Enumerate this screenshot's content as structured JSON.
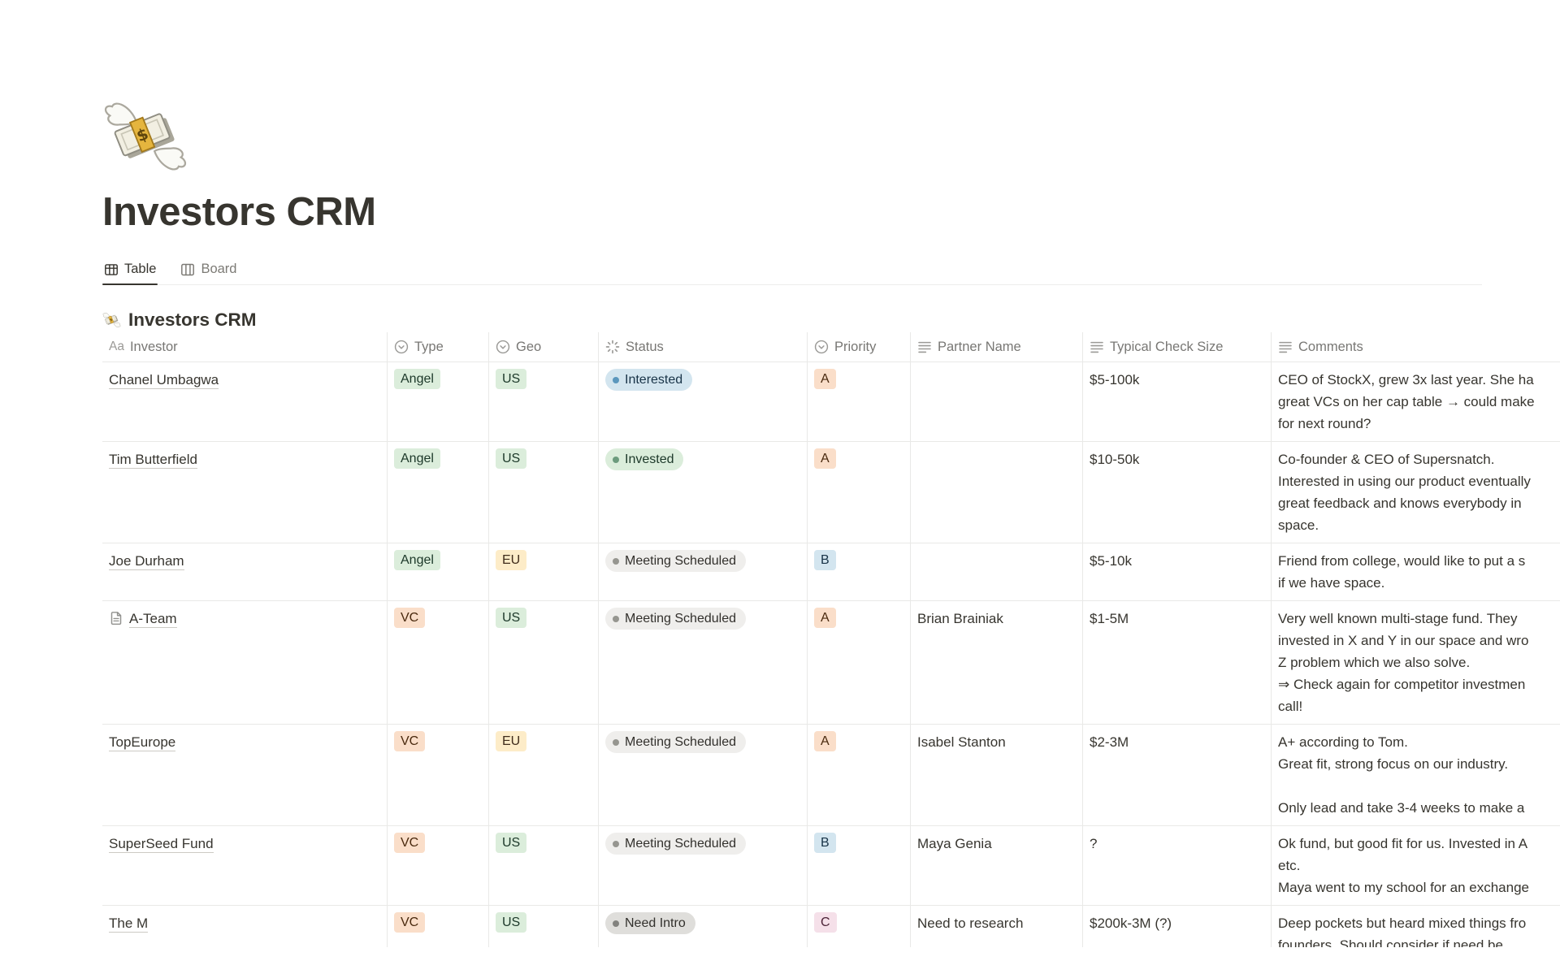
{
  "page": {
    "title": "Investors CRM",
    "icon": "money-with-wings"
  },
  "tabs": [
    {
      "label": "Table",
      "active": true
    },
    {
      "label": "Board",
      "active": false
    }
  ],
  "view": {
    "heading": "Investors CRM",
    "title_icon_text": "Aa",
    "columns": [
      {
        "label": "Investor",
        "icon": "title-icon"
      },
      {
        "label": "Type",
        "icon": "select-icon"
      },
      {
        "label": "Geo",
        "icon": "select-icon"
      },
      {
        "label": "Status",
        "icon": "status-icon"
      },
      {
        "label": "Priority",
        "icon": "select-icon"
      },
      {
        "label": "Partner Name",
        "icon": "text-icon"
      },
      {
        "label": "Typical Check Size",
        "icon": "text-icon"
      },
      {
        "label": "Comments",
        "icon": "text-icon"
      }
    ],
    "rows": [
      {
        "investor": "Chanel Umbagwa",
        "has_page_icon": false,
        "type": {
          "label": "Angel",
          "color": "green"
        },
        "geo": {
          "label": "US",
          "color": "green"
        },
        "status": {
          "label": "Interested",
          "color": "blue"
        },
        "priority": {
          "label": "A",
          "color": "orange"
        },
        "partner": "",
        "check_size": "$5-100k",
        "comments": [
          "CEO of StockX, grew 3x last year. She ha",
          "great VCs on her cap table → could make",
          "for next round?"
        ]
      },
      {
        "investor": "Tim Butterfield",
        "has_page_icon": false,
        "type": {
          "label": "Angel",
          "color": "green"
        },
        "geo": {
          "label": "US",
          "color": "green"
        },
        "status": {
          "label": "Invested",
          "color": "green"
        },
        "priority": {
          "label": "A",
          "color": "orange"
        },
        "partner": "",
        "check_size": "$10-50k",
        "comments": [
          "Co-founder & CEO of Supersnatch.",
          "Interested in using our product eventually",
          "great feedback and knows everybody in",
          "space."
        ]
      },
      {
        "investor": "Joe Durham",
        "has_page_icon": false,
        "type": {
          "label": "Angel",
          "color": "green"
        },
        "geo": {
          "label": "EU",
          "color": "yellow"
        },
        "status": {
          "label": "Meeting Scheduled",
          "color": "default"
        },
        "priority": {
          "label": "B",
          "color": "blue"
        },
        "partner": "",
        "check_size": "$5-10k",
        "comments": [
          "Friend from college, would like to put a s",
          "if we have space."
        ]
      },
      {
        "investor": "A-Team",
        "has_page_icon": true,
        "type": {
          "label": "VC",
          "color": "orange"
        },
        "geo": {
          "label": "US",
          "color": "green"
        },
        "status": {
          "label": "Meeting Scheduled",
          "color": "default"
        },
        "priority": {
          "label": "A",
          "color": "orange"
        },
        "partner": "Brian Brainiak",
        "check_size": "$1-5M",
        "comments": [
          "Very well known multi-stage fund. They",
          "invested in X and Y in our space and wro",
          "Z problem which we also solve.",
          "⇒ Check again for competitor investmen",
          "call!"
        ]
      },
      {
        "investor": "TopEurope",
        "has_page_icon": false,
        "type": {
          "label": "VC",
          "color": "orange"
        },
        "geo": {
          "label": "EU",
          "color": "yellow"
        },
        "status": {
          "label": "Meeting Scheduled",
          "color": "default"
        },
        "priority": {
          "label": "A",
          "color": "orange"
        },
        "partner": "Isabel Stanton",
        "check_size": "$2-3M",
        "comments": [
          "A+ according to Tom.",
          "Great fit, strong focus on our industry.",
          "",
          "Only lead and take 3-4 weeks to make a"
        ]
      },
      {
        "investor": "SuperSeed Fund",
        "has_page_icon": false,
        "type": {
          "label": "VC",
          "color": "orange"
        },
        "geo": {
          "label": "US",
          "color": "green"
        },
        "status": {
          "label": "Meeting Scheduled",
          "color": "default"
        },
        "priority": {
          "label": "B",
          "color": "blue"
        },
        "partner": "Maya Genia",
        "check_size": "?",
        "comments": [
          "Ok fund, but good fit for us. Invested in A",
          "etc.",
          "Maya went to my school for an exchange"
        ]
      },
      {
        "investor": "The M",
        "has_page_icon": false,
        "type": {
          "label": "VC",
          "color": "orange"
        },
        "geo": {
          "label": "US",
          "color": "green"
        },
        "status": {
          "label": "Need Intro",
          "color": "gray"
        },
        "priority": {
          "label": "C",
          "color": "pink"
        },
        "partner": "Need to research",
        "check_size": "$200k-3M (?)",
        "comments": [
          "Deep pockets but heard mixed things fro",
          "founders. Should consider if need be"
        ]
      }
    ]
  },
  "colors": {
    "text": "#37352F",
    "muted": "#787774",
    "border": "#E9E9E7",
    "tag_green_bg": "#DBEDDB",
    "tag_yellow_bg": "#FDECC8",
    "tag_orange_bg": "#FADEC9",
    "tag_blue_bg": "#D3E5EF",
    "tag_pink_bg": "#F5E0E9",
    "status_default_bg": "#EFEEEC",
    "status_gray_bg": "#DFDEDB",
    "dot_blue": "#5B97BD",
    "dot_green": "#6C9B7D",
    "dot_gray": "#969690"
  }
}
